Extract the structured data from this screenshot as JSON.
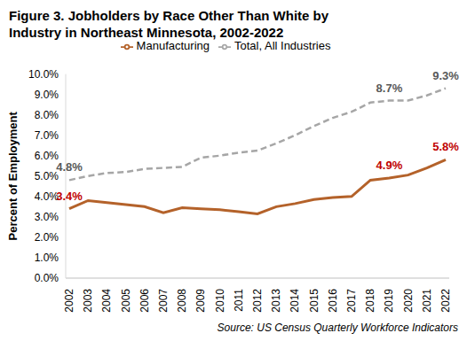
{
  "chart_data": {
    "type": "line",
    "title": "Figure 3. Jobholders by Race Other Than White by Industry in Northeast Minnesota, 2002-2022",
    "source": "Source: US Census Quarterly Workforce Indicators",
    "y_label": "Percent of Employment",
    "categories": [
      "2002",
      "2003",
      "2004",
      "2005",
      "2006",
      "2007",
      "2008",
      "2009",
      "2010",
      "2011",
      "2012",
      "2013",
      "2014",
      "2015",
      "2016",
      "2017",
      "2018",
      "2019",
      "2020",
      "2021",
      "2022"
    ],
    "series": [
      {
        "name": "Manufacturing",
        "color": "#b4622a",
        "line_style": "solid",
        "marker": "none",
        "values": [
          3.4,
          3.8,
          3.7,
          3.6,
          3.5,
          3.2,
          3.45,
          3.4,
          3.35,
          3.25,
          3.15,
          3.5,
          3.65,
          3.85,
          3.95,
          4.0,
          4.8,
          4.9,
          5.05,
          5.4,
          5.8
        ],
        "value_labels": [
          "3.4%",
          null,
          null,
          null,
          null,
          null,
          null,
          null,
          null,
          null,
          null,
          null,
          null,
          null,
          null,
          null,
          null,
          "4.9%",
          null,
          null,
          "5.8%"
        ]
      },
      {
        "name": "Total, All Industries",
        "color": "#a6a6a6",
        "line_style": "dashed",
        "marker": "none",
        "values": [
          4.8,
          5.0,
          5.15,
          5.2,
          5.35,
          5.4,
          5.45,
          5.9,
          6.0,
          6.15,
          6.25,
          6.6,
          7.0,
          7.45,
          7.85,
          8.15,
          8.6,
          8.7,
          8.7,
          8.95,
          9.3
        ],
        "value_labels": [
          "4.8%",
          null,
          null,
          null,
          null,
          null,
          null,
          null,
          null,
          null,
          null,
          null,
          null,
          null,
          null,
          null,
          null,
          "8.7%",
          null,
          null,
          "9.3%"
        ]
      }
    ],
    "ylim": [
      0,
      10
    ],
    "yticks": [
      {
        "value": 0,
        "label": "0.0%"
      },
      {
        "value": 1,
        "label": "1.0%"
      },
      {
        "value": 2,
        "label": "2.0%"
      },
      {
        "value": 3,
        "label": "3.0%"
      },
      {
        "value": 4,
        "label": "4.0%"
      },
      {
        "value": 5,
        "label": "5.0%"
      },
      {
        "value": 6,
        "label": "6.0%"
      },
      {
        "value": 7,
        "label": "7.0%"
      },
      {
        "value": 8,
        "label": "8.0%"
      },
      {
        "value": 9,
        "label": "9.0%"
      },
      {
        "value": 10,
        "label": "10.0%"
      }
    ],
    "grid": false,
    "legend": "top",
    "data_labels": true
  }
}
